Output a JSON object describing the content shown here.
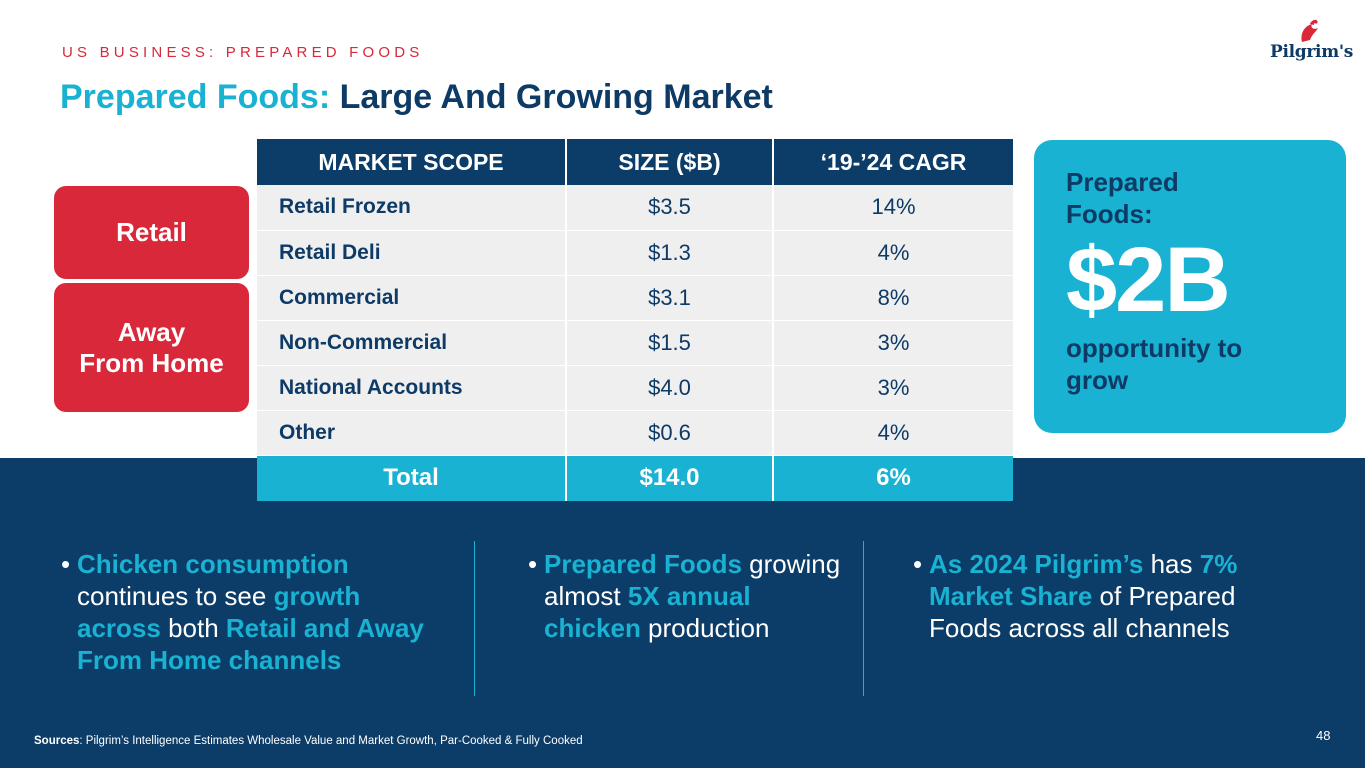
{
  "header": {
    "eyebrow": "US BUSINESS: PREPARED FOODS",
    "title_accent": "Prepared Foods:",
    "title_rest": " Large And Growing Market",
    "logo_text": "Pilgrim's"
  },
  "segments": {
    "retail": "Retail",
    "away_line1": "Away",
    "away_line2": "From Home"
  },
  "table": {
    "headers": [
      "MARKET SCOPE",
      "SIZE ($B)",
      "‘19-’24 CAGR"
    ],
    "rows": [
      {
        "scope": "Retail Frozen",
        "size": "$3.5",
        "cagr": "14%"
      },
      {
        "scope": "Retail Deli",
        "size": "$1.3",
        "cagr": "4%"
      },
      {
        "scope": "Commercial",
        "size": "$3.1",
        "cagr": "8%"
      },
      {
        "scope": "Non-Commercial",
        "size": "$1.5",
        "cagr": "3%"
      },
      {
        "scope": "National Accounts",
        "size": "$4.0",
        "cagr": "3%"
      },
      {
        "scope": "Other",
        "size": "$0.6",
        "cagr": "4%"
      }
    ],
    "total": {
      "scope": "Total",
      "size": "$14.0",
      "cagr": "6%"
    }
  },
  "opportunity": {
    "label": "Prepared Foods:",
    "value": "$2B",
    "caption": "opportunity to grow"
  },
  "bullets": {
    "b1": {
      "p1": "Chicken consumption",
      "p2": " continues to see ",
      "p3": "growth across",
      "p4": " both ",
      "p5": "Retail and Away From Home channels"
    },
    "b2": {
      "p1": "Prepared Foods",
      "p2": " growing almost ",
      "p3": "5X annual chicken",
      "p4": " production"
    },
    "b3": {
      "p1": "As 2024 Pilgrim’s",
      "p2": " has ",
      "p3": "7% Market Share",
      "p4": " of Prepared Foods across all channels"
    }
  },
  "footer": {
    "sources_label": "Sources",
    "sources_text": ": Pilgrim’s Intelligence Estimates Wholesale Value and Market Growth, Par-Cooked & Fully Cooked",
    "page_number": "48"
  },
  "colors": {
    "navy": "#0c3c68",
    "cyan": "#19b2d2",
    "red": "#d8283a"
  }
}
